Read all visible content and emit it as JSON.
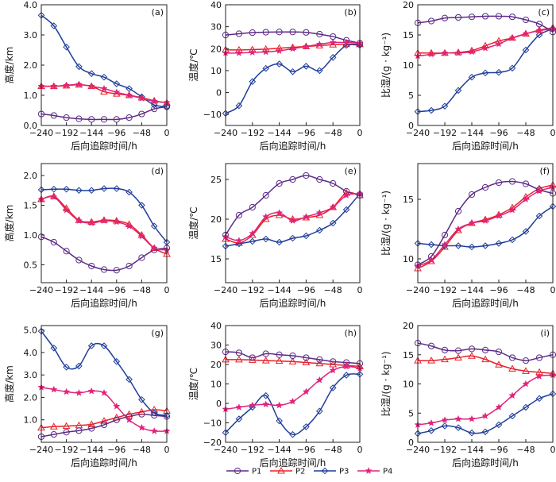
{
  "legend": {
    "placement": "bottom-center",
    "items": [
      {
        "name": "P1",
        "color": "#5b2a86",
        "marker": "circle"
      },
      {
        "name": "P2",
        "color": "#e8202a",
        "marker": "triangle"
      },
      {
        "name": "P3",
        "color": "#1f3d99",
        "marker": "diamond"
      },
      {
        "name": "P4",
        "color": "#e0247a",
        "marker": "star"
      }
    ]
  },
  "chart_data": [
    {
      "panel": "(a)",
      "type": "line",
      "ylabel": "高度/km",
      "xlabel": "后向追踪时间/h",
      "xlim": [
        -240,
        0
      ],
      "ylim": [
        0.0,
        4.0
      ],
      "xticks": [
        -240,
        -192,
        -144,
        -96,
        -48,
        0
      ],
      "xtick_labels": [
        "−240",
        "−192",
        "−144",
        "−96",
        "−48",
        "0"
      ],
      "yticks": [
        0.0,
        1.0,
        2.0,
        3.0,
        4.0
      ],
      "ytick_labels": [
        "0.0",
        "1.0",
        "2.0",
        "3.0",
        "4.0"
      ],
      "x": [
        -240,
        -216,
        -192,
        -168,
        -144,
        -120,
        -96,
        -72,
        -48,
        -24,
        0
      ],
      "series": [
        {
          "name": "P1",
          "values": [
            0.38,
            0.33,
            0.26,
            0.22,
            0.2,
            0.2,
            0.2,
            0.26,
            0.38,
            0.55,
            0.62
          ]
        },
        {
          "name": "P2",
          "values": [
            1.3,
            1.3,
            1.32,
            1.35,
            1.3,
            1.12,
            1.05,
            1.0,
            0.92,
            0.82,
            0.75
          ]
        },
        {
          "name": "P3",
          "values": [
            3.65,
            3.3,
            2.6,
            1.95,
            1.72,
            1.6,
            1.38,
            1.22,
            0.95,
            0.68,
            0.62
          ]
        },
        {
          "name": "P4",
          "values": [
            1.3,
            1.3,
            1.33,
            1.36,
            1.3,
            1.22,
            1.1,
            1.0,
            0.9,
            0.8,
            0.76
          ]
        }
      ]
    },
    {
      "panel": "(b)",
      "type": "line",
      "ylabel": "温度/℃",
      "xlabel": "后向追踪时间/h",
      "xlim": [
        -240,
        0
      ],
      "ylim": [
        -15,
        40
      ],
      "xticks": [
        -240,
        -192,
        -144,
        -96,
        -48,
        0
      ],
      "xtick_labels": [
        "−240",
        "−192",
        "−144",
        "−96",
        "−48",
        "0"
      ],
      "yticks": [
        -10,
        0,
        10,
        20,
        30,
        40
      ],
      "ytick_labels": [
        "−10",
        "0",
        "10",
        "20",
        "30",
        "40"
      ],
      "x": [
        -240,
        -216,
        -192,
        -168,
        -144,
        -120,
        -96,
        -72,
        -48,
        -24,
        0
      ],
      "series": [
        {
          "name": "P1",
          "values": [
            26.2,
            26.8,
            27.3,
            27.5,
            27.6,
            27.6,
            27.4,
            26.6,
            25.5,
            23.8,
            22.5
          ]
        },
        {
          "name": "P2",
          "values": [
            19.5,
            19.4,
            19.6,
            19.8,
            20.2,
            20.6,
            21.0,
            21.4,
            21.8,
            22.0,
            22.0
          ]
        },
        {
          "name": "P3",
          "values": [
            -9.5,
            -6,
            5,
            11,
            13,
            9.5,
            12,
            10,
            16,
            21.5,
            21.5
          ]
        },
        {
          "name": "P4",
          "values": [
            18.0,
            18.0,
            18.3,
            18.5,
            19.0,
            20.0,
            21.0,
            22.0,
            22.8,
            22.8,
            22.5
          ]
        }
      ]
    },
    {
      "panel": "(c)",
      "type": "line",
      "ylabel": "比湿/(g · kg⁻¹)",
      "xlabel": "后向追踪时间/h",
      "xlim": [
        -240,
        0
      ],
      "ylim": [
        0,
        20
      ],
      "xticks": [
        -240,
        -192,
        -144,
        -96,
        -48,
        0
      ],
      "xtick_labels": [
        "−240",
        "−192",
        "−144",
        "−96",
        "−48",
        "0"
      ],
      "yticks": [
        0,
        5,
        10,
        15,
        20
      ],
      "ytick_labels": [
        "0",
        "5",
        "10",
        "15",
        "20"
      ],
      "x": [
        -240,
        -216,
        -192,
        -168,
        -144,
        -120,
        -96,
        -72,
        -48,
        -24,
        0
      ],
      "series": [
        {
          "name": "P1",
          "values": [
            17.0,
            17.3,
            17.8,
            17.9,
            18.0,
            18.1,
            18.1,
            18.0,
            17.5,
            16.8,
            15.5
          ]
        },
        {
          "name": "P2",
          "values": [
            12.0,
            12.0,
            12.0,
            12.1,
            12.4,
            13.2,
            14.0,
            14.5,
            15.2,
            15.8,
            16.2
          ]
        },
        {
          "name": "P3",
          "values": [
            2.3,
            2.5,
            3.2,
            5.8,
            8.0,
            8.7,
            8.8,
            9.5,
            12.5,
            15.0,
            16.0
          ]
        },
        {
          "name": "P4",
          "values": [
            11.5,
            11.8,
            12.0,
            12.0,
            12.2,
            12.8,
            13.5,
            14.5,
            15.2,
            15.7,
            16.0
          ]
        }
      ]
    },
    {
      "panel": "(d)",
      "type": "line",
      "ylabel": "高度/km",
      "xlabel": "后向追踪时间/h",
      "xlim": [
        -240,
        0
      ],
      "ylim": [
        0.2,
        2.2
      ],
      "xticks": [
        -240,
        -192,
        -144,
        -96,
        -48,
        0
      ],
      "xtick_labels": [
        "−240",
        "−192",
        "−144",
        "−96",
        "−48",
        "0"
      ],
      "yticks": [
        0.5,
        1.0,
        1.5,
        2.0
      ],
      "ytick_labels": [
        "0.5",
        "1.0",
        "1.5",
        "2.0"
      ],
      "x": [
        -240,
        -216,
        -192,
        -168,
        -144,
        -120,
        -96,
        -72,
        -48,
        -24,
        0
      ],
      "series": [
        {
          "name": "P1",
          "values": [
            0.97,
            0.88,
            0.73,
            0.58,
            0.48,
            0.42,
            0.41,
            0.48,
            0.62,
            0.75,
            0.78
          ]
        },
        {
          "name": "P2",
          "values": [
            1.6,
            1.65,
            1.45,
            1.25,
            1.22,
            1.25,
            1.24,
            1.18,
            1.0,
            0.78,
            0.68
          ]
        },
        {
          "name": "P3",
          "values": [
            1.76,
            1.77,
            1.77,
            1.75,
            1.75,
            1.78,
            1.78,
            1.72,
            1.5,
            1.15,
            0.88
          ]
        },
        {
          "name": "P4",
          "values": [
            1.6,
            1.64,
            1.42,
            1.24,
            1.2,
            1.24,
            1.22,
            1.15,
            0.98,
            0.78,
            0.75
          ]
        }
      ]
    },
    {
      "panel": "(e)",
      "type": "line",
      "ylabel": "温度/℃",
      "xlabel": "后向追踪时间/h",
      "xlim": [
        -240,
        0
      ],
      "ylim": [
        12,
        27
      ],
      "xticks": [
        -240,
        -192,
        -144,
        -96,
        -48,
        0
      ],
      "xtick_labels": [
        "−240",
        "−192",
        "−144",
        "−96",
        "−48",
        "0"
      ],
      "yticks": [
        15,
        20,
        25
      ],
      "ytick_labels": [
        "15",
        "20",
        "25"
      ],
      "x": [
        -240,
        -216,
        -192,
        -168,
        -144,
        -120,
        -96,
        -72,
        -48,
        -24,
        0
      ],
      "series": [
        {
          "name": "P1",
          "values": [
            18.0,
            20.5,
            21.5,
            23.0,
            24.5,
            25.0,
            25.5,
            25.0,
            24.5,
            23.5,
            23.0
          ]
        },
        {
          "name": "P2",
          "values": [
            17.5,
            17.0,
            18.0,
            20.0,
            20.5,
            20.0,
            20.2,
            20.5,
            21.5,
            23.3,
            23.0
          ]
        },
        {
          "name": "P3",
          "values": [
            16.6,
            16.9,
            17.2,
            17.5,
            17.1,
            17.6,
            17.9,
            18.6,
            19.5,
            21.2,
            23.2
          ]
        },
        {
          "name": "P4",
          "values": [
            17.8,
            17.3,
            18.2,
            20.3,
            20.8,
            19.8,
            20.3,
            20.8,
            21.5,
            23.0,
            23.2
          ]
        }
      ]
    },
    {
      "panel": "(f)",
      "type": "line",
      "ylabel": "比湿/(g · kg⁻¹)",
      "xlabel": "后向追踪时间/h",
      "xlim": [
        -240,
        0
      ],
      "ylim": [
        8,
        18
      ],
      "xticks": [
        -240,
        -192,
        -144,
        -96,
        -48,
        0
      ],
      "xtick_labels": [
        "−240",
        "−192",
        "−144",
        "−96",
        "−48",
        "0"
      ],
      "yticks": [
        10,
        15
      ],
      "ytick_labels": [
        "10",
        "15"
      ],
      "x": [
        -240,
        -216,
        -192,
        -168,
        -144,
        -120,
        -96,
        -72,
        -48,
        -24,
        0
      ],
      "series": [
        {
          "name": "P1",
          "values": [
            9.5,
            10.2,
            12.0,
            14.0,
            15.4,
            16.0,
            16.4,
            16.5,
            16.3,
            15.8,
            15.5
          ]
        },
        {
          "name": "P2",
          "values": [
            9.2,
            9.8,
            11.0,
            12.4,
            13.0,
            13.3,
            13.7,
            14.3,
            15.2,
            15.9,
            16.2
          ]
        },
        {
          "name": "P3",
          "values": [
            11.3,
            11.2,
            11.1,
            11.1,
            11.0,
            11.1,
            11.3,
            11.6,
            12.3,
            13.6,
            14.4
          ]
        },
        {
          "name": "P4",
          "values": [
            9.4,
            9.9,
            11.2,
            12.5,
            13.0,
            13.2,
            13.6,
            14.1,
            15.0,
            15.7,
            16.0
          ]
        }
      ]
    },
    {
      "panel": "(g)",
      "type": "line",
      "ylabel": "高度/km",
      "xlabel": "后向追踪时间/h",
      "xlim": [
        -240,
        0
      ],
      "ylim": [
        0.0,
        5.2
      ],
      "xticks": [
        -240,
        -192,
        -144,
        -96,
        -48,
        0
      ],
      "xtick_labels": [
        "−240",
        "−192",
        "−144",
        "−96",
        "−48",
        "0"
      ],
      "yticks": [
        1.0,
        2.0,
        3.0,
        4.0,
        5.0
      ],
      "ytick_labels": [
        "1.0",
        "2.0",
        "3.0",
        "4.0",
        "5.0"
      ],
      "x": [
        -240,
        -216,
        -192,
        -168,
        -144,
        -120,
        -96,
        -72,
        -48,
        -24,
        0
      ],
      "series": [
        {
          "name": "P1",
          "values": [
            0.25,
            0.35,
            0.45,
            0.52,
            0.62,
            0.78,
            1.0,
            1.15,
            1.25,
            1.2,
            1.15
          ]
        },
        {
          "name": "P2",
          "values": [
            0.65,
            0.7,
            0.72,
            0.75,
            0.8,
            0.95,
            1.1,
            1.25,
            1.35,
            1.45,
            1.4
          ]
        },
        {
          "name": "P3",
          "values": [
            4.95,
            4.2,
            3.35,
            3.4,
            4.3,
            4.3,
            3.6,
            2.8,
            1.9,
            1.3,
            1.2
          ]
        },
        {
          "name": "P4",
          "values": [
            2.45,
            2.35,
            2.25,
            2.2,
            2.28,
            2.2,
            1.6,
            1.0,
            0.65,
            0.5,
            0.5
          ]
        }
      ]
    },
    {
      "panel": "(h)",
      "type": "line",
      "ylabel": "温度/℃",
      "xlabel": "后向追踪时间/h",
      "xlim": [
        -240,
        0
      ],
      "ylim": [
        -20,
        40
      ],
      "xticks": [
        -240,
        -192,
        -144,
        -96,
        -48,
        0
      ],
      "xtick_labels": [
        "−240",
        "−192",
        "−144",
        "−96",
        "−48",
        "0"
      ],
      "yticks": [
        -20,
        -10,
        0,
        10,
        20,
        30,
        40
      ],
      "ytick_labels": [
        "−20",
        "−10",
        "0",
        "10",
        "20",
        "30",
        "40"
      ],
      "x": [
        -240,
        -216,
        -192,
        -168,
        -144,
        -120,
        -96,
        -72,
        -48,
        -24,
        0
      ],
      "series": [
        {
          "name": "P1",
          "values": [
            26.5,
            26.0,
            23.5,
            25.5,
            25.0,
            24.5,
            23.5,
            22.5,
            21.5,
            21.0,
            20.5
          ]
        },
        {
          "name": "P2",
          "values": [
            22.5,
            22.5,
            22.3,
            22.0,
            21.8,
            21.5,
            21.0,
            20.5,
            20.0,
            19.5,
            19.0
          ]
        },
        {
          "name": "P3",
          "values": [
            -15,
            -8,
            -2,
            4,
            -9,
            -16,
            -12,
            -4,
            8,
            14.5,
            15
          ]
        },
        {
          "name": "P4",
          "values": [
            -3,
            -2,
            -1,
            -0.5,
            -1,
            1,
            6,
            12,
            17,
            19,
            18
          ]
        }
      ]
    },
    {
      "panel": "(i)",
      "type": "line",
      "ylabel": "比湿/(g · kg⁻¹)",
      "xlabel": "后向追踪时间/h",
      "xlim": [
        -240,
        0
      ],
      "ylim": [
        0,
        20
      ],
      "xticks": [
        -240,
        -192,
        -144,
        -96,
        -48,
        0
      ],
      "xtick_labels": [
        "−240",
        "−192",
        "−144",
        "−96",
        "−48",
        "0"
      ],
      "yticks": [
        0,
        5,
        10,
        15,
        20
      ],
      "ytick_labels": [
        "0",
        "5",
        "10",
        "15",
        "20"
      ],
      "x": [
        -240,
        -216,
        -192,
        -168,
        -144,
        -120,
        -96,
        -72,
        -48,
        -24,
        0
      ],
      "series": [
        {
          "name": "P1",
          "values": [
            17.0,
            16.5,
            15.8,
            15.7,
            16.0,
            15.8,
            15.5,
            14.5,
            14.0,
            14.5,
            15.0
          ]
        },
        {
          "name": "P2",
          "values": [
            14.0,
            14.0,
            14.2,
            14.5,
            14.8,
            14.2,
            13.3,
            12.6,
            12.2,
            12.0,
            11.8
          ]
        },
        {
          "name": "P3",
          "values": [
            1.5,
            2.0,
            2.8,
            2.5,
            1.6,
            1.8,
            3.0,
            4.5,
            6.0,
            7.5,
            8.3
          ]
        },
        {
          "name": "P4",
          "values": [
            3.0,
            3.3,
            3.8,
            4.0,
            4.0,
            4.5,
            6.0,
            8.0,
            10.0,
            11.3,
            11.5
          ]
        }
      ]
    }
  ]
}
